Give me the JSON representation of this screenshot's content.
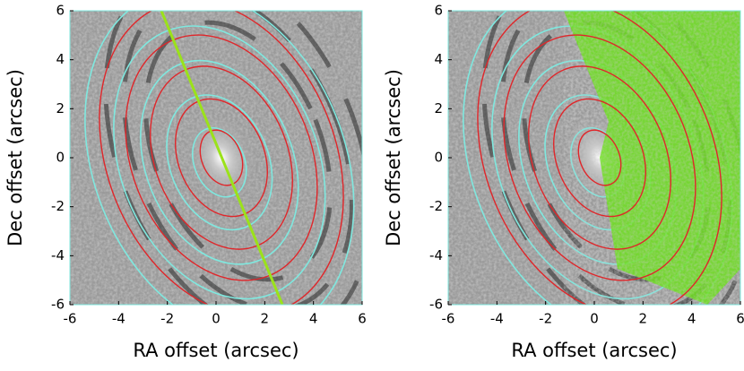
{
  "chart_data": [
    {
      "type": "image",
      "xlabel": "RA offset (arcsec)",
      "ylabel": "Dec offset (arcsec)",
      "xlim": [
        -6,
        6
      ],
      "ylim": [
        -6,
        6
      ],
      "xticks": [
        -6,
        -4,
        -2,
        0,
        2,
        4,
        6
      ],
      "yticks": [
        -6,
        -4,
        -2,
        0,
        2,
        4,
        6
      ]
    },
    {
      "type": "image",
      "xlabel": "RA offset (arcsec)",
      "ylabel": "Dec offset (arcsec)",
      "xlim": [
        -6,
        6
      ],
      "ylim": [
        -6,
        6
      ],
      "xticks": [
        -6,
        -4,
        -2,
        0,
        2,
        4,
        6
      ],
      "yticks": [
        -6,
        -4,
        -2,
        0,
        2,
        4,
        6
      ]
    }
  ]
}
